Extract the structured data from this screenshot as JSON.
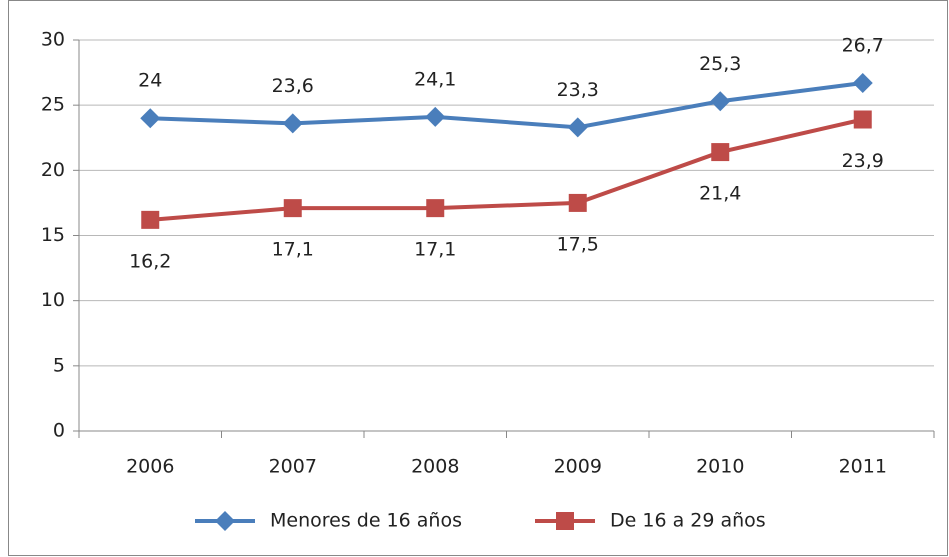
{
  "chart_data": {
    "type": "line",
    "categories": [
      "2006",
      "2007",
      "2008",
      "2009",
      "2010",
      "2011"
    ],
    "series": [
      {
        "name": "Menores de 16 años",
        "color": "#4a7ebb",
        "marker": "diamond",
        "label_position": "above",
        "values": [
          24,
          23.6,
          24.1,
          23.3,
          25.3,
          26.7
        ],
        "value_labels": [
          "24",
          "23,6",
          "24,1",
          "23,3",
          "25,3",
          "26,7"
        ]
      },
      {
        "name": "De 16 a 29 años",
        "color": "#be4b48",
        "marker": "square",
        "label_position": "below",
        "values": [
          16.2,
          17.1,
          17.1,
          17.5,
          21.4,
          23.9
        ],
        "value_labels": [
          "16,2",
          "17,1",
          "17,1",
          "17,5",
          "21,4",
          "23,9"
        ]
      }
    ],
    "ylim": [
      0,
      30
    ],
    "yticks": [
      0,
      5,
      10,
      15,
      20,
      25,
      30
    ],
    "grid": true,
    "legend": "bottom"
  }
}
